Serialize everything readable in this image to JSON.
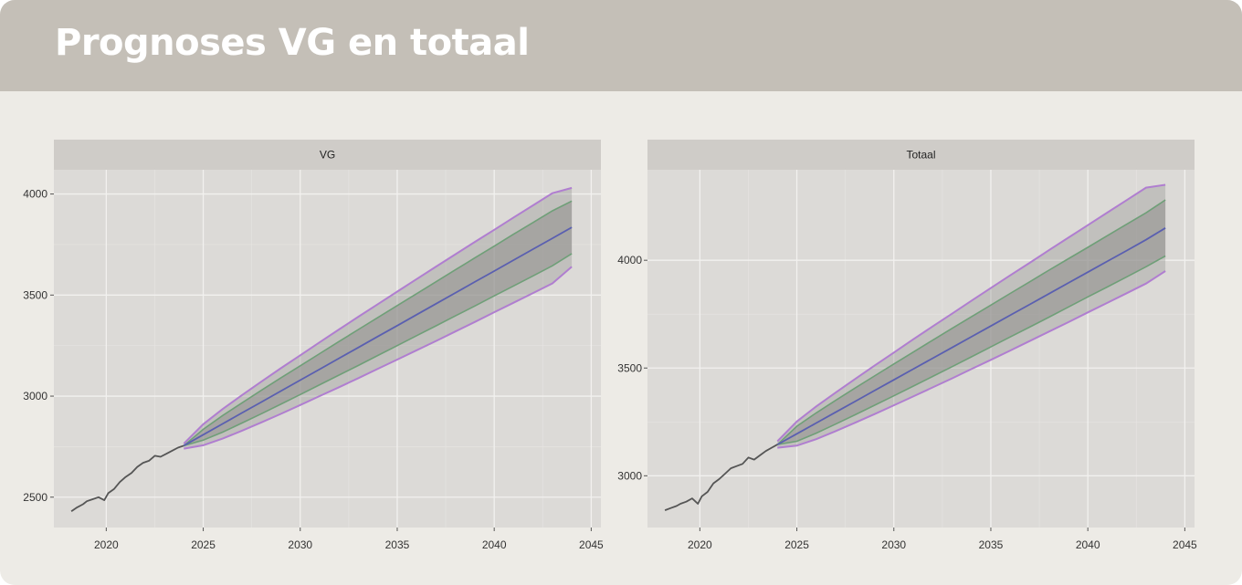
{
  "header": {
    "title": "Prognoses VG en totaal"
  },
  "chart_data": [
    {
      "type": "line",
      "title": "VG",
      "xlabel": "",
      "ylabel": "",
      "xlim": [
        2017.3,
        2045.5
      ],
      "ylim": [
        2350,
        4120
      ],
      "x_ticks": [
        2020,
        2025,
        2030,
        2035,
        2040,
        2045
      ],
      "y_ticks": [
        2500,
        3000,
        3500,
        4000
      ],
      "history": {
        "x": [
          2018.2,
          2018.5,
          2018.8,
          2019.0,
          2019.3,
          2019.6,
          2019.9,
          2020.1,
          2020.4,
          2020.7,
          2021.0,
          2021.3,
          2021.6,
          2021.9,
          2022.2,
          2022.5,
          2022.8,
          2023.1,
          2023.4,
          2023.7,
          2024.0
        ],
        "y": [
          2430,
          2450,
          2465,
          2480,
          2490,
          2500,
          2485,
          2520,
          2540,
          2575,
          2600,
          2620,
          2650,
          2670,
          2680,
          2705,
          2700,
          2715,
          2730,
          2745,
          2755
        ]
      },
      "forecast": {
        "x": [
          2024.0,
          2025,
          2026,
          2027,
          2028,
          2029,
          2030,
          2031,
          2032,
          2033,
          2034,
          2035,
          2036,
          2037,
          2038,
          2039,
          2040,
          2041,
          2042,
          2043,
          2044
        ],
        "mean": [
          2755,
          2809,
          2863,
          2917,
          2971,
          3025,
          3079,
          3133,
          3187,
          3241,
          3295,
          3349,
          3403,
          3457,
          3511,
          3565,
          3619,
          3673,
          3727,
          3781,
          3835
        ],
        "lower_80": [
          2755,
          2782,
          2822,
          2867,
          2913,
          2960,
          3008,
          3056,
          3104,
          3152,
          3201,
          3250,
          3299,
          3348,
          3397,
          3446,
          3496,
          3545,
          3595,
          3645,
          3705
        ],
        "upper_80": [
          2755,
          2836,
          2904,
          2967,
          3029,
          3090,
          3150,
          3210,
          3270,
          3330,
          3389,
          3448,
          3507,
          3566,
          3625,
          3684,
          3742,
          3801,
          3859,
          3917,
          3965
        ],
        "lower_95": [
          2740,
          2757,
          2790,
          2829,
          2870,
          2912,
          2956,
          3000,
          3044,
          3089,
          3135,
          3181,
          3227,
          3273,
          3320,
          3367,
          3415,
          3462,
          3510,
          3558,
          3640
        ],
        "upper_95": [
          2765,
          2861,
          2936,
          3005,
          3072,
          3138,
          3202,
          3266,
          3330,
          3393,
          3455,
          3517,
          3579,
          3641,
          3702,
          3763,
          3823,
          3884,
          3944,
          4004,
          4030
        ]
      },
      "colors": {
        "history": "#555555",
        "mean": "#5a5fb0",
        "band_80": "#6f9f78",
        "band_95": "#b07ed0",
        "fill": "#8f8e8c"
      }
    },
    {
      "type": "line",
      "title": "Totaal",
      "xlabel": "",
      "ylabel": "",
      "xlim": [
        2017.3,
        2045.5
      ],
      "ylim": [
        2760,
        4420
      ],
      "x_ticks": [
        2020,
        2025,
        2030,
        2035,
        2040,
        2045
      ],
      "y_ticks": [
        3000,
        3500,
        4000
      ],
      "history": {
        "x": [
          2018.2,
          2018.5,
          2018.8,
          2019.0,
          2019.3,
          2019.6,
          2019.9,
          2020.1,
          2020.4,
          2020.7,
          2021.0,
          2021.3,
          2021.6,
          2021.9,
          2022.2,
          2022.5,
          2022.8,
          2023.1,
          2023.4,
          2023.7,
          2024.0
        ],
        "y": [
          2840,
          2850,
          2860,
          2870,
          2880,
          2895,
          2870,
          2905,
          2925,
          2965,
          2985,
          3010,
          3035,
          3045,
          3055,
          3085,
          3075,
          3095,
          3115,
          3130,
          3145
        ]
      },
      "forecast": {
        "x": [
          2024.0,
          2025,
          2026,
          2027,
          2028,
          2029,
          2030,
          2031,
          2032,
          2033,
          2034,
          2035,
          2036,
          2037,
          2038,
          2039,
          2040,
          2041,
          2042,
          2043,
          2044
        ],
        "mean": [
          3145,
          3195,
          3245,
          3295,
          3345,
          3395,
          3445,
          3495,
          3545,
          3595,
          3645,
          3695,
          3745,
          3795,
          3845,
          3895,
          3945,
          3995,
          4045,
          4095,
          4150
        ],
        "lower_80": [
          3145,
          3160,
          3198,
          3240,
          3283,
          3327,
          3371,
          3416,
          3461,
          3506,
          3552,
          3598,
          3644,
          3690,
          3736,
          3783,
          3830,
          3876,
          3923,
          3970,
          4020
        ],
        "upper_80": [
          3145,
          3230,
          3292,
          3350,
          3407,
          3463,
          3519,
          3574,
          3629,
          3684,
          3738,
          3792,
          3846,
          3900,
          3954,
          4007,
          4060,
          4114,
          4167,
          4220,
          4280
        ],
        "lower_95": [
          3130,
          3140,
          3170,
          3207,
          3246,
          3286,
          3327,
          3368,
          3410,
          3452,
          3495,
          3538,
          3581,
          3625,
          3669,
          3713,
          3758,
          3802,
          3847,
          3892,
          3950
        ],
        "upper_95": [
          3160,
          3252,
          3322,
          3386,
          3449,
          3511,
          3572,
          3633,
          3693,
          3752,
          3812,
          3871,
          3930,
          3988,
          4047,
          4105,
          4163,
          4221,
          4279,
          4337,
          4350
        ]
      },
      "colors": {
        "history": "#555555",
        "mean": "#5a5fb0",
        "band_80": "#6f9f78",
        "band_95": "#b07ed0",
        "fill": "#8f8e8c"
      }
    }
  ]
}
